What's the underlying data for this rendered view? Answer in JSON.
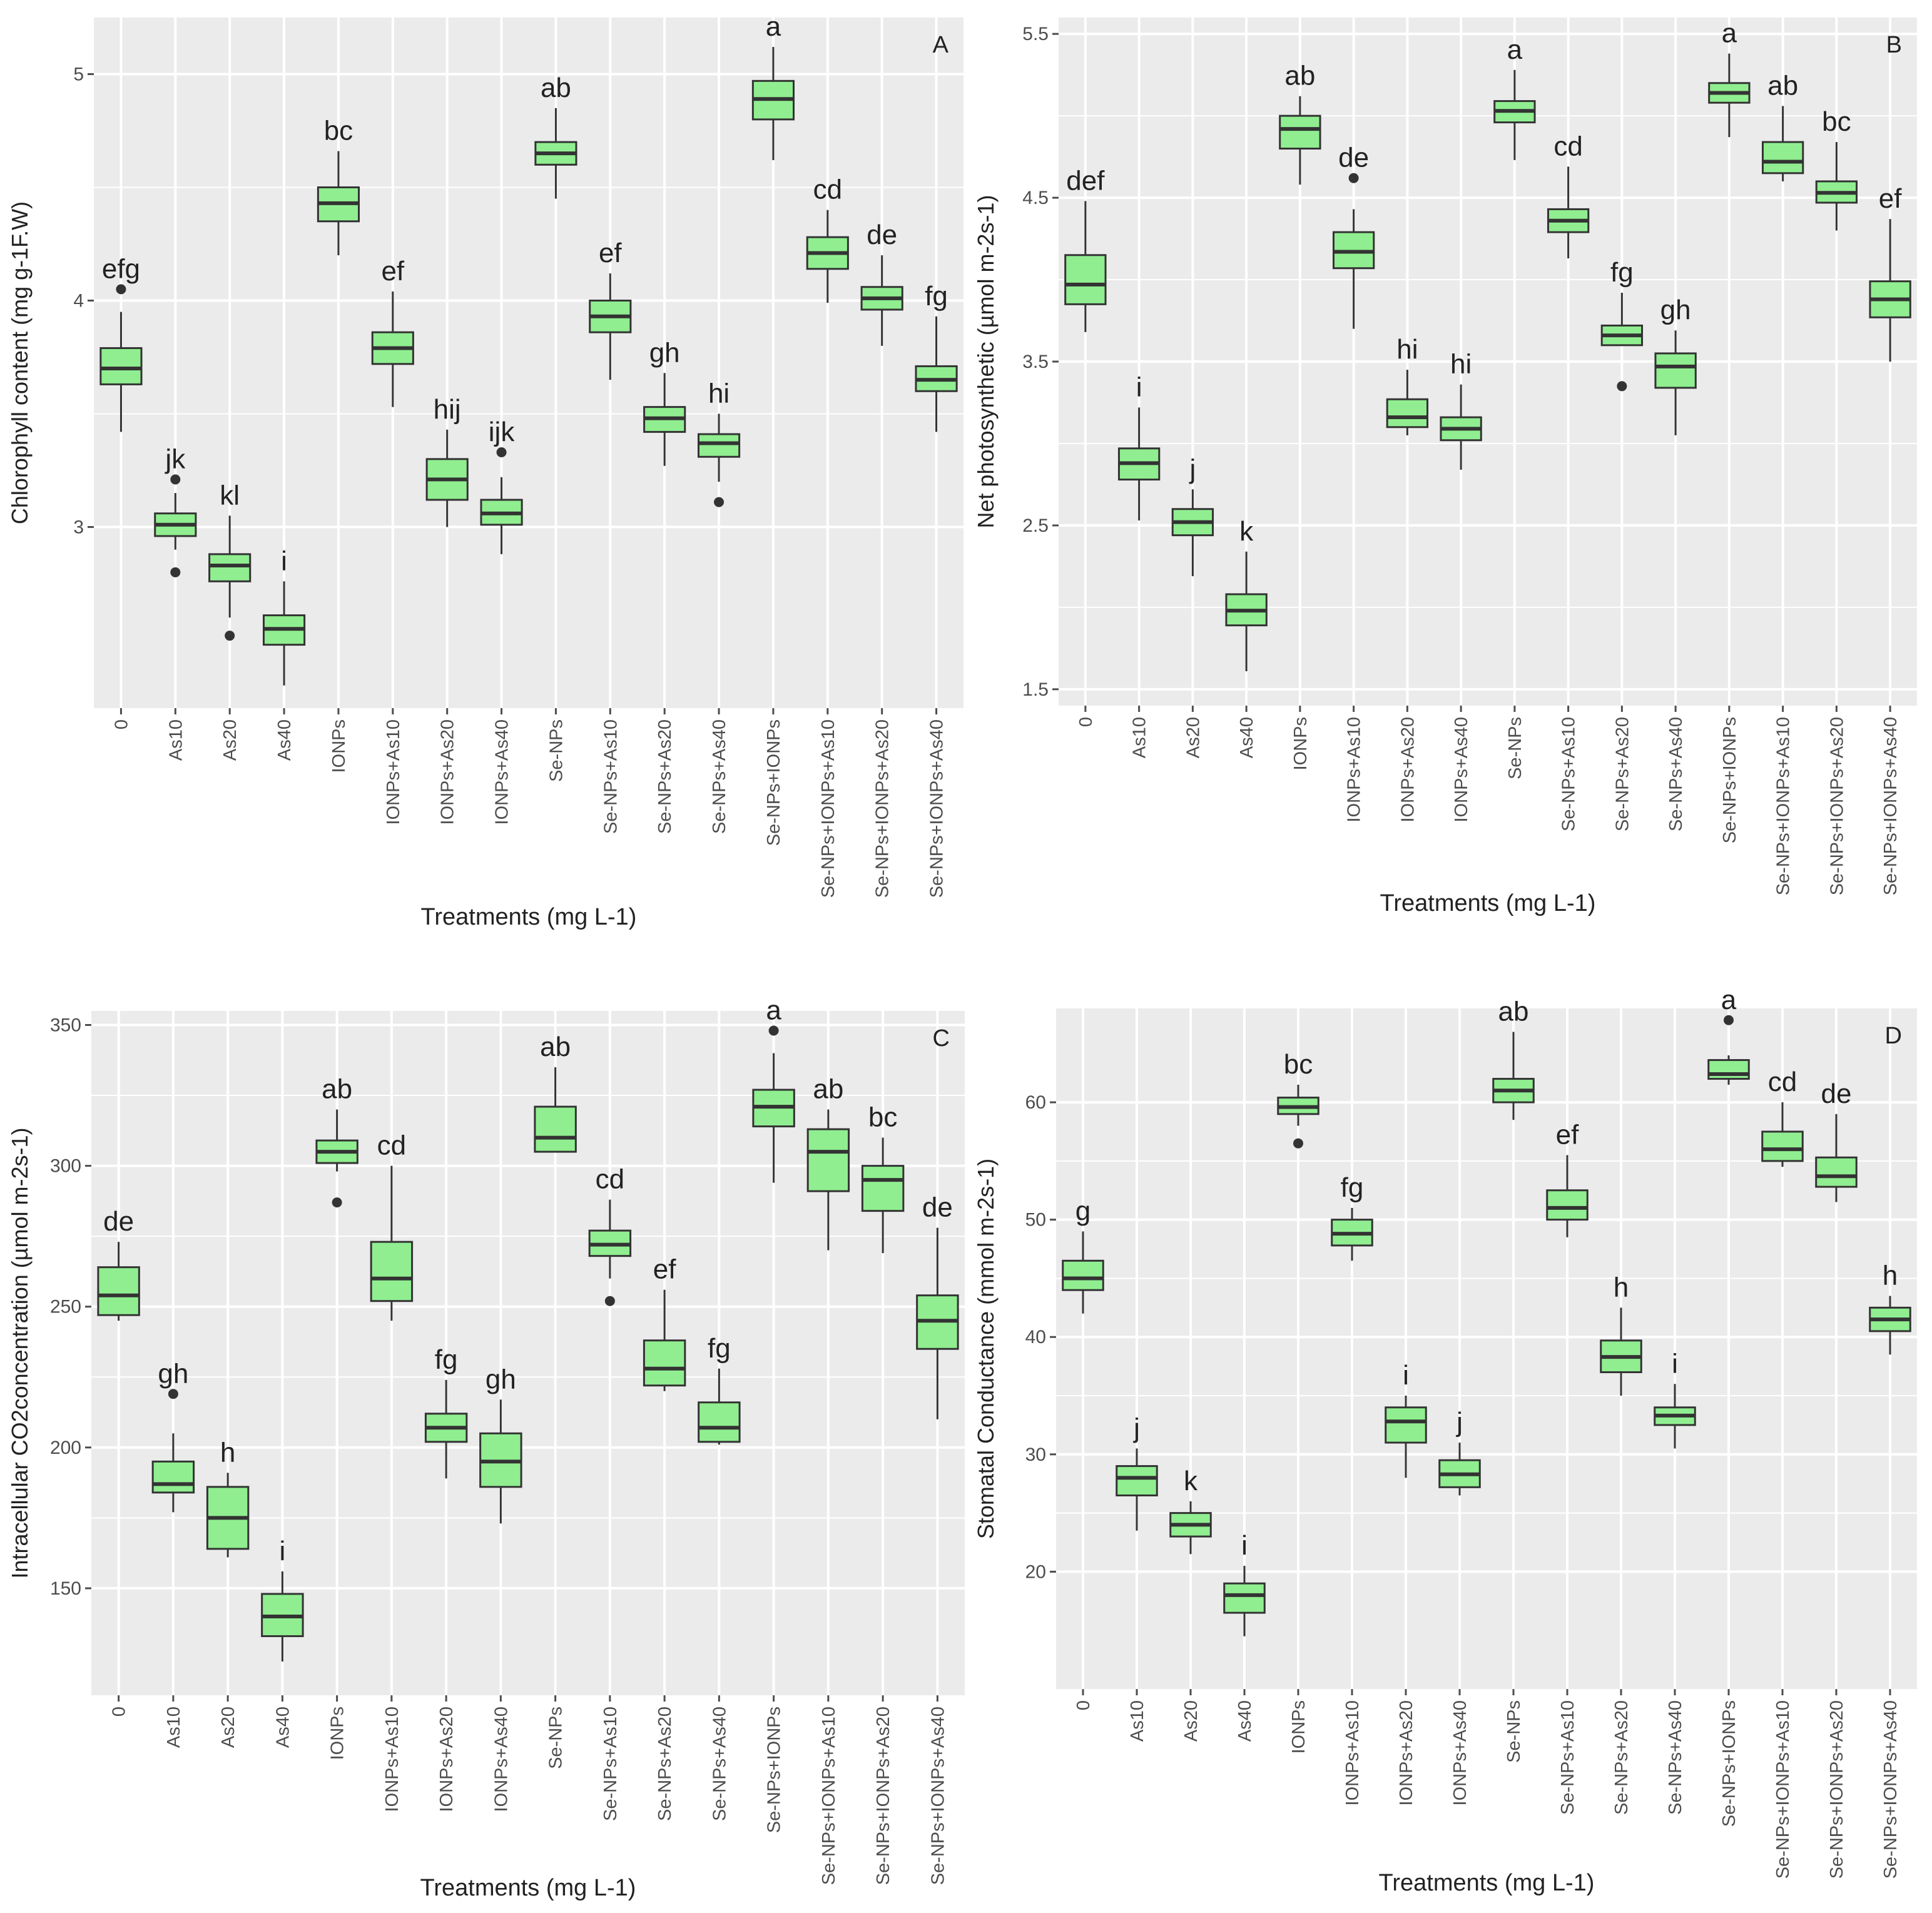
{
  "figure": {
    "box_fill": "#90ee90",
    "box_stroke": "#333333",
    "panel_bg": "#ebebeb",
    "grid_color": "#ffffff",
    "text_color": "#222222",
    "tick_color": "#4d4d4d"
  },
  "chart_data": [
    {
      "type": "box",
      "panel_label": "A",
      "xlabel": "Treatments (mg L-1)",
      "ylabel": "Chlorophyll content (mg g-1F.W)",
      "ylim": [
        2.2,
        5.25
      ],
      "yticks": [
        3,
        4,
        5
      ],
      "ytick_labels": [
        "3",
        "4",
        "5"
      ],
      "categories": [
        "0",
        "As10",
        "As20",
        "As40",
        "IONPs",
        "IONPs+As10",
        "IONPs+As20",
        "IONPs+As40",
        "Se-NPs",
        "Se-NPs+As10",
        "Se-NPs+As20",
        "Se-NPs+As40",
        "Se-NPs+IONPs",
        "Se-NPs+IONPs+As10",
        "Se-NPs+IONPs+As20",
        "Se-NPs+IONPs+As40"
      ],
      "letters": [
        "efg",
        "jk",
        "kl",
        "i",
        "bc",
        "ef",
        "hij",
        "ijk",
        "ab",
        "ef",
        "gh",
        "hi",
        "a",
        "cd",
        "de",
        "fg"
      ],
      "boxes": [
        {
          "min": 3.42,
          "q1": 3.63,
          "median": 3.7,
          "q3": 3.79,
          "max": 3.95,
          "outliers": [
            4.05
          ]
        },
        {
          "min": 2.9,
          "q1": 2.96,
          "median": 3.01,
          "q3": 3.06,
          "max": 3.15,
          "outliers": [
            3.21,
            2.8
          ]
        },
        {
          "min": 2.6,
          "q1": 2.76,
          "median": 2.83,
          "q3": 2.88,
          "max": 3.05,
          "outliers": [
            2.52
          ]
        },
        {
          "min": 2.3,
          "q1": 2.48,
          "median": 2.55,
          "q3": 2.61,
          "max": 2.76,
          "outliers": []
        },
        {
          "min": 4.2,
          "q1": 4.35,
          "median": 4.43,
          "q3": 4.5,
          "max": 4.66,
          "outliers": []
        },
        {
          "min": 3.53,
          "q1": 3.72,
          "median": 3.79,
          "q3": 3.86,
          "max": 4.04,
          "outliers": []
        },
        {
          "min": 3.0,
          "q1": 3.12,
          "median": 3.21,
          "q3": 3.3,
          "max": 3.43,
          "outliers": []
        },
        {
          "min": 2.88,
          "q1": 3.01,
          "median": 3.06,
          "q3": 3.12,
          "max": 3.22,
          "outliers": [
            3.33
          ]
        },
        {
          "min": 4.45,
          "q1": 4.6,
          "median": 4.65,
          "q3": 4.7,
          "max": 4.85,
          "outliers": []
        },
        {
          "min": 3.65,
          "q1": 3.86,
          "median": 3.93,
          "q3": 4.0,
          "max": 4.12,
          "outliers": []
        },
        {
          "min": 3.27,
          "q1": 3.42,
          "median": 3.48,
          "q3": 3.53,
          "max": 3.68,
          "outliers": []
        },
        {
          "min": 3.2,
          "q1": 3.31,
          "median": 3.37,
          "q3": 3.41,
          "max": 3.5,
          "outliers": [
            3.11
          ]
        },
        {
          "min": 4.62,
          "q1": 4.8,
          "median": 4.89,
          "q3": 4.97,
          "max": 5.12,
          "outliers": []
        },
        {
          "min": 3.99,
          "q1": 4.14,
          "median": 4.21,
          "q3": 4.28,
          "max": 4.4,
          "outliers": []
        },
        {
          "min": 3.8,
          "q1": 3.96,
          "median": 4.01,
          "q3": 4.06,
          "max": 4.2,
          "outliers": []
        },
        {
          "min": 3.42,
          "q1": 3.6,
          "median": 3.65,
          "q3": 3.71,
          "max": 3.93,
          "outliers": []
        }
      ]
    },
    {
      "type": "box",
      "panel_label": "B",
      "xlabel": "Treatments (mg L-1)",
      "ylabel": "Net photosynthetic (µmol m-2s-1)",
      "ylim": [
        1.4,
        5.6
      ],
      "yticks": [
        1.5,
        2.5,
        3.5,
        4.5,
        5.5
      ],
      "ytick_labels": [
        "1.5",
        "2.5",
        "3.5",
        "4.5",
        "5.5"
      ],
      "categories": [
        "0",
        "As10",
        "As20",
        "As40",
        "IONPs",
        "IONPs+As10",
        "IONPs+As20",
        "IONPs+As40",
        "Se-NPs",
        "Se-NPs+As10",
        "Se-NPs+As20",
        "Se-NPs+As40",
        "Se-NPs+IONPs",
        "Se-NPs+IONPs+As10",
        "Se-NPs+IONPs+As20",
        "Se-NPs+IONPs+As40"
      ],
      "letters": [
        "def",
        "i",
        "j",
        "k",
        "ab",
        "de",
        "hi",
        "hi",
        "a",
        "cd",
        "fg",
        "gh",
        "a",
        "ab",
        "bc",
        "ef"
      ],
      "boxes": [
        {
          "min": 3.68,
          "q1": 3.85,
          "median": 3.97,
          "q3": 4.15,
          "max": 4.48,
          "outliers": []
        },
        {
          "min": 2.53,
          "q1": 2.78,
          "median": 2.88,
          "q3": 2.97,
          "max": 3.22,
          "outliers": []
        },
        {
          "min": 2.19,
          "q1": 2.44,
          "median": 2.52,
          "q3": 2.6,
          "max": 2.72,
          "outliers": []
        },
        {
          "min": 1.61,
          "q1": 1.89,
          "median": 1.98,
          "q3": 2.08,
          "max": 2.34,
          "outliers": []
        },
        {
          "min": 4.58,
          "q1": 4.8,
          "median": 4.92,
          "q3": 5.0,
          "max": 5.12,
          "outliers": []
        },
        {
          "min": 3.7,
          "q1": 4.07,
          "median": 4.17,
          "q3": 4.29,
          "max": 4.43,
          "outliers": [
            4.62
          ]
        },
        {
          "min": 3.05,
          "q1": 3.1,
          "median": 3.16,
          "q3": 3.27,
          "max": 3.45,
          "outliers": []
        },
        {
          "min": 2.84,
          "q1": 3.02,
          "median": 3.09,
          "q3": 3.16,
          "max": 3.36,
          "outliers": []
        },
        {
          "min": 4.73,
          "q1": 4.96,
          "median": 5.03,
          "q3": 5.09,
          "max": 5.28,
          "outliers": []
        },
        {
          "min": 4.13,
          "q1": 4.29,
          "median": 4.36,
          "q3": 4.43,
          "max": 4.69,
          "outliers": []
        },
        {
          "min": 3.6,
          "q1": 3.6,
          "median": 3.66,
          "q3": 3.72,
          "max": 3.92,
          "outliers": [
            3.35
          ]
        },
        {
          "min": 3.05,
          "q1": 3.34,
          "median": 3.47,
          "q3": 3.55,
          "max": 3.69,
          "outliers": []
        },
        {
          "min": 4.87,
          "q1": 5.08,
          "median": 5.14,
          "q3": 5.2,
          "max": 5.38,
          "outliers": []
        },
        {
          "min": 4.6,
          "q1": 4.65,
          "median": 4.72,
          "q3": 4.84,
          "max": 5.06,
          "outliers": []
        },
        {
          "min": 4.3,
          "q1": 4.47,
          "median": 4.53,
          "q3": 4.6,
          "max": 4.84,
          "outliers": []
        },
        {
          "min": 3.5,
          "q1": 3.77,
          "median": 3.88,
          "q3": 3.99,
          "max": 4.37,
          "outliers": []
        }
      ]
    },
    {
      "type": "box",
      "panel_label": "C",
      "xlabel": "Treatments (mg L-1)",
      "ylabel": "Intracellular CO2concentration (µmol m-2s-1)",
      "ylim": [
        112,
        355
      ],
      "yticks": [
        150,
        200,
        250,
        300,
        350
      ],
      "ytick_labels": [
        "150",
        "200",
        "250",
        "300",
        "350"
      ],
      "categories": [
        "0",
        "As10",
        "As20",
        "As40",
        "IONPs",
        "IONPs+As10",
        "IONPs+As20",
        "IONPs+As40",
        "Se-NPs",
        "Se-NPs+As10",
        "Se-NPs+As20",
        "Se-NPs+As40",
        "Se-NPs+IONPs",
        "Se-NPs+IONPs+As10",
        "Se-NPs+IONPs+As20",
        "Se-NPs+IONPs+As40"
      ],
      "letters": [
        "de",
        "gh",
        "h",
        "i",
        "ab",
        "cd",
        "fg",
        "gh",
        "ab",
        "cd",
        "ef",
        "fg",
        "a",
        "ab",
        "bc",
        "de"
      ],
      "boxes": [
        {
          "min": 245,
          "q1": 247,
          "median": 254,
          "q3": 264,
          "max": 273,
          "outliers": []
        },
        {
          "min": 177,
          "q1": 184,
          "median": 187,
          "q3": 195,
          "max": 205,
          "outliers": [
            219
          ]
        },
        {
          "min": 161,
          "q1": 164,
          "median": 175,
          "q3": 186,
          "max": 191,
          "outliers": []
        },
        {
          "min": 124,
          "q1": 133,
          "median": 140,
          "q3": 148,
          "max": 156,
          "outliers": []
        },
        {
          "min": 298,
          "q1": 301,
          "median": 305,
          "q3": 309,
          "max": 320,
          "outliers": [
            287
          ]
        },
        {
          "min": 245,
          "q1": 252,
          "median": 260,
          "q3": 273,
          "max": 300,
          "outliers": []
        },
        {
          "min": 189,
          "q1": 202,
          "median": 207,
          "q3": 212,
          "max": 224,
          "outliers": []
        },
        {
          "min": 173,
          "q1": 186,
          "median": 195,
          "q3": 205,
          "max": 217,
          "outliers": []
        },
        {
          "min": 305,
          "q1": 305,
          "median": 310,
          "q3": 321,
          "max": 335,
          "outliers": []
        },
        {
          "min": 260,
          "q1": 268,
          "median": 272,
          "q3": 277,
          "max": 288,
          "outliers": [
            252
          ]
        },
        {
          "min": 220,
          "q1": 222,
          "median": 228,
          "q3": 238,
          "max": 256,
          "outliers": []
        },
        {
          "min": 201,
          "q1": 202,
          "median": 207,
          "q3": 216,
          "max": 228,
          "outliers": []
        },
        {
          "min": 294,
          "q1": 314,
          "median": 321,
          "q3": 327,
          "max": 340,
          "outliers": [
            348
          ]
        },
        {
          "min": 270,
          "q1": 291,
          "median": 305,
          "q3": 313,
          "max": 320,
          "outliers": []
        },
        {
          "min": 269,
          "q1": 284,
          "median": 295,
          "q3": 300,
          "max": 310,
          "outliers": []
        },
        {
          "min": 210,
          "q1": 235,
          "median": 245,
          "q3": 254,
          "max": 278,
          "outliers": []
        }
      ]
    },
    {
      "type": "box",
      "panel_label": "D",
      "xlabel": "Treatments (mg L-1)",
      "ylabel": "Stomatal Conductance (mmol m-2s-1)",
      "ylim": [
        10,
        68
      ],
      "yticks": [
        20,
        30,
        40,
        50,
        60
      ],
      "ytick_labels": [
        "20",
        "30",
        "40",
        "50",
        "60"
      ],
      "categories": [
        "0",
        "As10",
        "As20",
        "As40",
        "IONPs",
        "IONPs+As10",
        "IONPs+As20",
        "IONPs+As40",
        "Se-NPs",
        "Se-NPs+As10",
        "Se-NPs+As20",
        "Se-NPs+As40",
        "Se-NPs+IONPs",
        "Se-NPs+IONPs+As10",
        "Se-NPs+IONPs+As20",
        "Se-NPs+IONPs+As40"
      ],
      "letters": [
        "g",
        "j",
        "k",
        "i",
        "bc",
        "fg",
        "i",
        "j",
        "ab",
        "ef",
        "h",
        "i",
        "a",
        "cd",
        "de",
        "h"
      ],
      "boxes": [
        {
          "min": 42,
          "q1": 44,
          "median": 45,
          "q3": 46.5,
          "max": 49,
          "outliers": []
        },
        {
          "min": 23.5,
          "q1": 26.5,
          "median": 28,
          "q3": 29,
          "max": 30.5,
          "outliers": []
        },
        {
          "min": 21.5,
          "q1": 23,
          "median": 24,
          "q3": 25,
          "max": 26,
          "outliers": []
        },
        {
          "min": 14.5,
          "q1": 16.5,
          "median": 18,
          "q3": 19,
          "max": 20.5,
          "outliers": []
        },
        {
          "min": 58,
          "q1": 59,
          "median": 59.6,
          "q3": 60.4,
          "max": 61.5,
          "outliers": [
            56.5
          ]
        },
        {
          "min": 46.5,
          "q1": 47.8,
          "median": 48.8,
          "q3": 50,
          "max": 51,
          "outliers": []
        },
        {
          "min": 28,
          "q1": 31,
          "median": 32.8,
          "q3": 34,
          "max": 35,
          "outliers": []
        },
        {
          "min": 26.5,
          "q1": 27.2,
          "median": 28.3,
          "q3": 29.5,
          "max": 31,
          "outliers": []
        },
        {
          "min": 58.5,
          "q1": 60,
          "median": 61,
          "q3": 62,
          "max": 66,
          "outliers": []
        },
        {
          "min": 48.5,
          "q1": 50,
          "median": 51,
          "q3": 52.5,
          "max": 55.5,
          "outliers": []
        },
        {
          "min": 35,
          "q1": 37,
          "median": 38.3,
          "q3": 39.7,
          "max": 42.5,
          "outliers": []
        },
        {
          "min": 30.5,
          "q1": 32.5,
          "median": 33.3,
          "q3": 34,
          "max": 36,
          "outliers": []
        },
        {
          "min": 61.5,
          "q1": 62,
          "median": 62.4,
          "q3": 63.6,
          "max": 64,
          "outliers": [
            67
          ]
        },
        {
          "min": 54.5,
          "q1": 55,
          "median": 56,
          "q3": 57.5,
          "max": 60,
          "outliers": []
        },
        {
          "min": 51.5,
          "q1": 52.8,
          "median": 53.7,
          "q3": 55.3,
          "max": 59,
          "outliers": []
        },
        {
          "min": 38.5,
          "q1": 40.5,
          "median": 41.5,
          "q3": 42.5,
          "max": 43.5,
          "outliers": []
        }
      ]
    }
  ]
}
